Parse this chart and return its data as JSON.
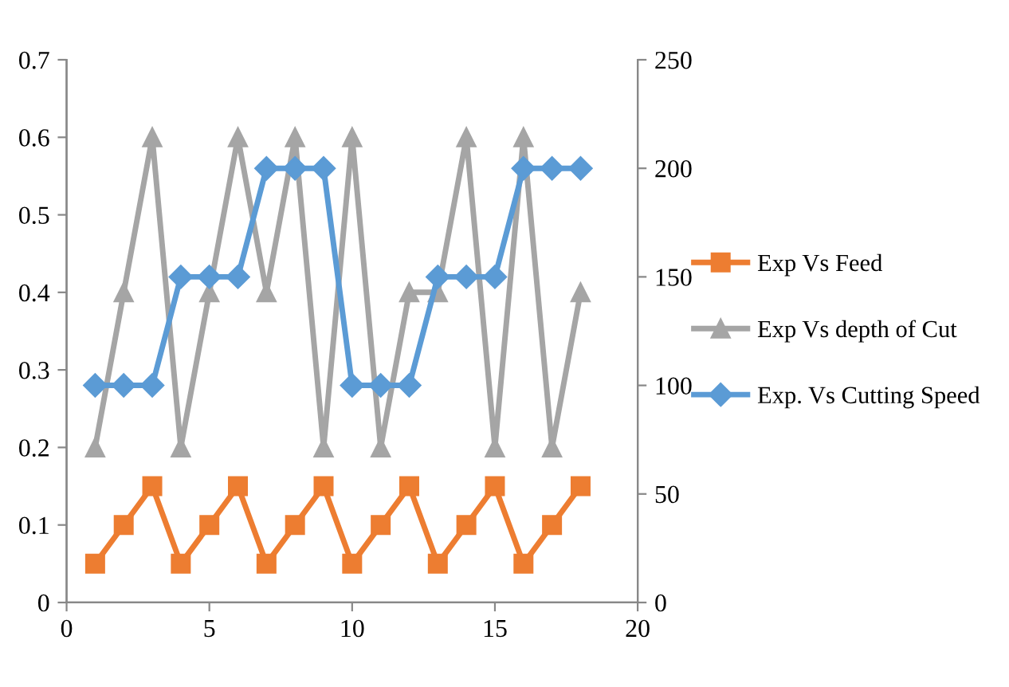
{
  "chart_data": {
    "type": "line",
    "x": [
      1,
      2,
      3,
      4,
      5,
      6,
      7,
      8,
      9,
      10,
      11,
      12,
      13,
      14,
      15,
      16,
      17,
      18
    ],
    "series": [
      {
        "name": "Exp Vs Feed",
        "color": "#ed7d31",
        "marker": "square",
        "values": [
          0.05,
          0.1,
          0.15,
          0.05,
          0.1,
          0.15,
          0.05,
          0.1,
          0.15,
          0.05,
          0.1,
          0.15,
          0.05,
          0.1,
          0.15,
          0.05,
          0.1,
          0.15
        ]
      },
      {
        "name": "Exp Vs depth of Cut",
        "color": "#a5a5a5",
        "marker": "triangle",
        "values": [
          0.2,
          0.4,
          0.6,
          0.2,
          0.4,
          0.6,
          0.4,
          0.6,
          0.2,
          0.6,
          0.2,
          0.4,
          0.4,
          0.6,
          0.2,
          0.6,
          0.2,
          0.4
        ]
      },
      {
        "name": "Exp. Vs Cutting Speed",
        "color": "#5b9bd5",
        "marker": "diamond",
        "axis": "y2",
        "values": [
          100,
          100,
          100,
          150,
          150,
          150,
          200,
          200,
          200,
          100,
          100,
          100,
          150,
          150,
          150,
          200,
          200,
          200
        ]
      }
    ],
    "xlim": [
      0,
      20
    ],
    "xticks": [
      0,
      5,
      10,
      15,
      20
    ],
    "ylim": [
      0,
      0.7
    ],
    "yticks": [
      0,
      0.1,
      0.2,
      0.3,
      0.4,
      0.5,
      0.6,
      0.7
    ],
    "y2lim": [
      0,
      250
    ],
    "y2ticks": [
      0,
      50,
      100,
      150,
      200,
      250
    ],
    "grid": false,
    "legend": "right",
    "line_style": "solid"
  }
}
